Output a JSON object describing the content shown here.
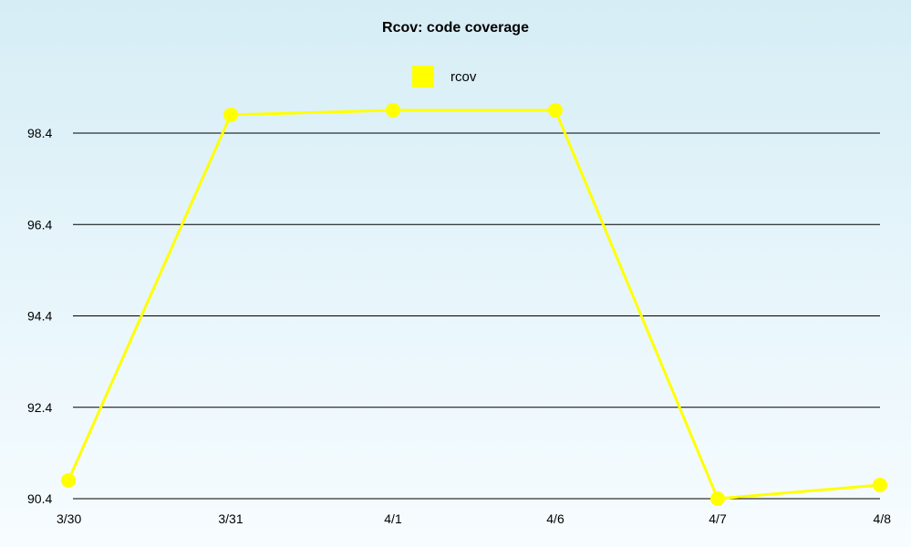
{
  "chart_data": {
    "type": "line",
    "title": "Rcov: code coverage",
    "categories": [
      "3/30",
      "3/31",
      "4/1",
      "4/6",
      "4/7",
      "4/8"
    ],
    "series": [
      {
        "name": "rcov",
        "values": [
          90.8,
          98.8,
          98.9,
          98.9,
          90.4,
          90.7
        ],
        "color": "#ffff00"
      }
    ],
    "y_ticks": [
      "98.4",
      "96.4",
      "94.4",
      "92.4",
      "90.4"
    ],
    "ylim": [
      90.4,
      98.9
    ],
    "grid": true,
    "legend_position": "top-center"
  }
}
